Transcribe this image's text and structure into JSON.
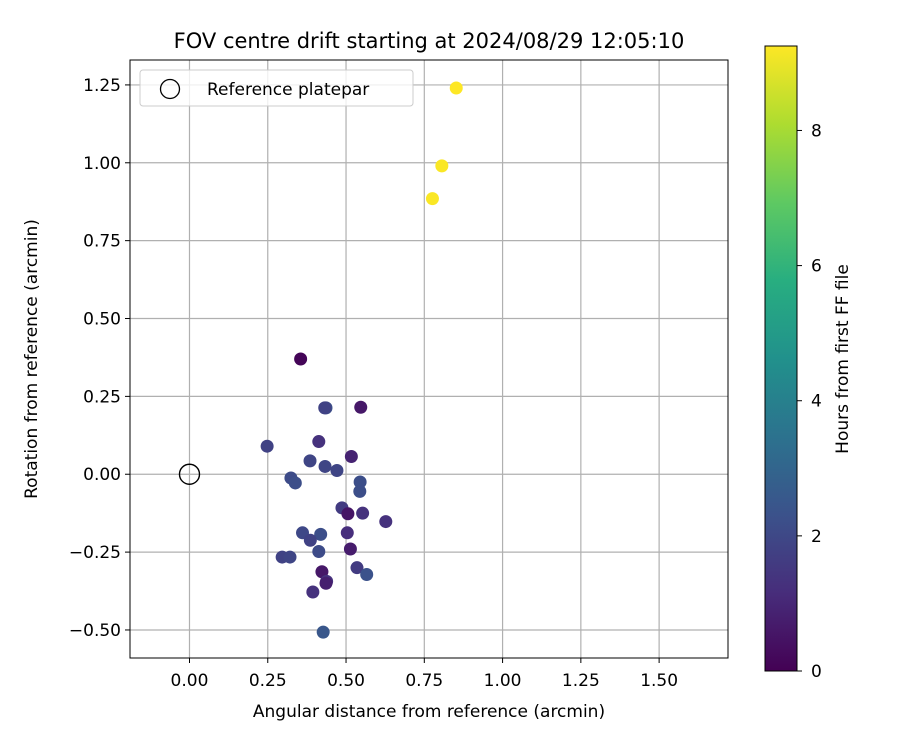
{
  "chart_data": {
    "type": "scatter",
    "title": "FOV centre drift starting at 2024/08/29 12:05:10",
    "xlabel": "Angular distance from reference (arcmin)",
    "ylabel": "Rotation from reference (arcmin)",
    "xlim": [
      -0.19,
      1.72
    ],
    "ylim": [
      -0.59,
      1.33
    ],
    "xticks": [
      0.0,
      0.25,
      0.5,
      0.75,
      1.0,
      1.25,
      1.5
    ],
    "xtick_labels": [
      "0.00",
      "0.25",
      "0.50",
      "0.75",
      "1.00",
      "1.25",
      "1.50"
    ],
    "yticks": [
      -0.5,
      -0.25,
      0.0,
      0.25,
      0.5,
      0.75,
      1.0,
      1.25
    ],
    "ytick_labels": [
      "−0.50",
      "−0.25",
      "0.00",
      "0.25",
      "0.50",
      "0.75",
      "1.00",
      "1.25"
    ],
    "grid": true,
    "legend": {
      "placement": "top-left",
      "entries": [
        "Reference platepar"
      ]
    },
    "reference_point": {
      "x": 0.0,
      "y": 0.0
    },
    "colorbar": {
      "label": "Hours from first FF file",
      "colormap": "viridis",
      "range": [
        0,
        9.25
      ],
      "ticks": [
        0,
        2,
        4,
        6,
        8
      ],
      "tick_labels": [
        "0",
        "2",
        "4",
        "6",
        "8"
      ]
    },
    "points": [
      {
        "x": 0.355,
        "y": 0.37,
        "c": 0.1
      },
      {
        "x": 0.547,
        "y": 0.215,
        "c": 0.6
      },
      {
        "x": 0.436,
        "y": 0.213,
        "c": 2.2
      },
      {
        "x": 0.432,
        "y": 0.213,
        "c": 1.8
      },
      {
        "x": 0.248,
        "y": 0.09,
        "c": 1.8
      },
      {
        "x": 0.413,
        "y": 0.105,
        "c": 1.3
      },
      {
        "x": 0.517,
        "y": 0.057,
        "c": 0.9
      },
      {
        "x": 0.385,
        "y": 0.043,
        "c": 1.9
      },
      {
        "x": 0.433,
        "y": 0.025,
        "c": 1.9
      },
      {
        "x": 0.471,
        "y": 0.012,
        "c": 1.9
      },
      {
        "x": 0.324,
        "y": -0.012,
        "c": 2.1
      },
      {
        "x": 0.338,
        "y": -0.028,
        "c": 2.2
      },
      {
        "x": 0.545,
        "y": -0.025,
        "c": 2.2
      },
      {
        "x": 0.544,
        "y": -0.055,
        "c": 2.2
      },
      {
        "x": 0.487,
        "y": -0.108,
        "c": 1.6
      },
      {
        "x": 0.506,
        "y": -0.127,
        "c": 0.5
      },
      {
        "x": 0.553,
        "y": -0.125,
        "c": 1.3
      },
      {
        "x": 0.627,
        "y": -0.152,
        "c": 1.3
      },
      {
        "x": 0.361,
        "y": -0.188,
        "c": 2.0
      },
      {
        "x": 0.419,
        "y": -0.193,
        "c": 2.2
      },
      {
        "x": 0.504,
        "y": -0.188,
        "c": 1.2
      },
      {
        "x": 0.386,
        "y": -0.212,
        "c": 1.8
      },
      {
        "x": 0.514,
        "y": -0.24,
        "c": 0.7
      },
      {
        "x": 0.413,
        "y": -0.248,
        "c": 2.1
      },
      {
        "x": 0.296,
        "y": -0.266,
        "c": 1.8
      },
      {
        "x": 0.321,
        "y": -0.266,
        "c": 1.9
      },
      {
        "x": 0.535,
        "y": -0.3,
        "c": 1.6
      },
      {
        "x": 0.566,
        "y": -0.322,
        "c": 2.3
      },
      {
        "x": 0.423,
        "y": -0.313,
        "c": 0.6
      },
      {
        "x": 0.438,
        "y": -0.344,
        "c": 1.3
      },
      {
        "x": 0.436,
        "y": -0.35,
        "c": 0.8
      },
      {
        "x": 0.394,
        "y": -0.378,
        "c": 1.3
      },
      {
        "x": 0.427,
        "y": -0.507,
        "c": 2.5
      },
      {
        "x": 0.776,
        "y": 0.885,
        "c": 9.2
      },
      {
        "x": 0.806,
        "y": 0.99,
        "c": 9.2
      },
      {
        "x": 0.852,
        "y": 1.24,
        "c": 9.25
      }
    ]
  }
}
